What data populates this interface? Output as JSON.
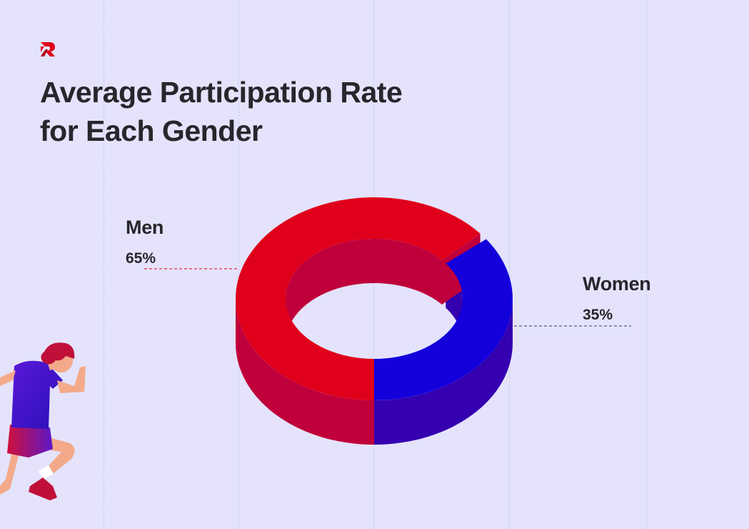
{
  "page": {
    "title_lines": [
      "Average Participation Rate",
      "for Each Gender"
    ]
  },
  "chart_data": {
    "type": "pie",
    "variant": "3d-donut",
    "title": "Average Participation Rate for Each Gender",
    "categories": [
      "Men",
      "Women"
    ],
    "values": [
      65,
      35
    ],
    "value_labels": [
      "65%",
      "35%"
    ],
    "colors": {
      "Men": {
        "top": "#e0001b",
        "side": "#c0003a"
      },
      "Women": {
        "top": "#1300db",
        "side": "#3500b0"
      }
    },
    "legend": "none"
  },
  "colors": {
    "background": "#e4e3fb",
    "text": "#26262c",
    "brand": "#e0001b"
  },
  "icons": {
    "logo": "brand-r-logo-icon",
    "illustration": "runner-illustration"
  }
}
